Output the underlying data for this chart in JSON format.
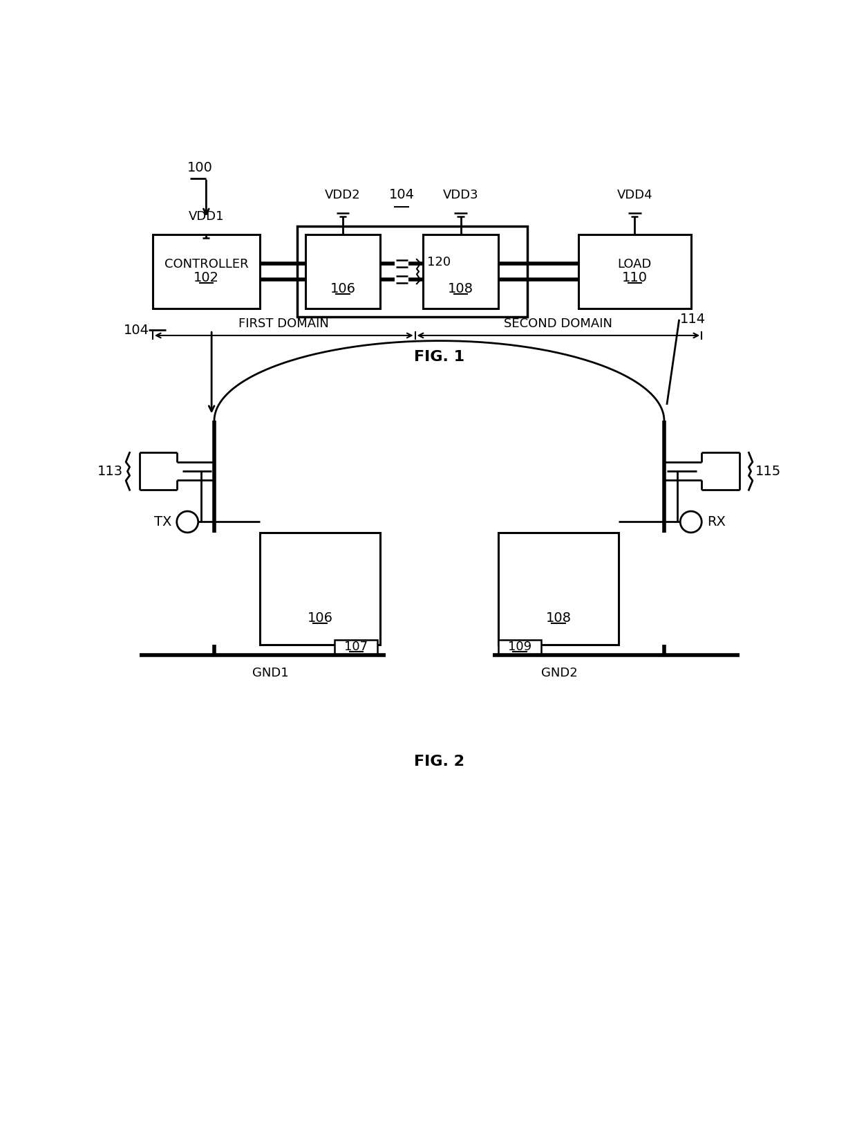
{
  "bg_color": "#ffffff",
  "fig1": {
    "title": "FIG. 1",
    "label_100": "100",
    "label_vdd1": "VDD1",
    "label_vdd2": "VDD2",
    "label_vdd3": "VDD3",
    "label_vdd4": "VDD4",
    "label_104": "104",
    "label_120": "120",
    "label_controller": "CONTROLLER",
    "label_102": "102",
    "label_106": "106",
    "label_108": "108",
    "label_load": "LOAD",
    "label_110": "110",
    "label_first_domain": "FIRST DOMAIN",
    "label_second_domain": "SECOND DOMAIN"
  },
  "fig2": {
    "title": "FIG. 2",
    "label_104": "104",
    "label_114": "114",
    "label_113": "113",
    "label_115": "115",
    "label_106": "106",
    "label_108": "108",
    "label_107": "107",
    "label_109": "109",
    "label_tx": "TX",
    "label_rx": "RX",
    "label_gnd1": "GND1",
    "label_gnd2": "GND2"
  }
}
